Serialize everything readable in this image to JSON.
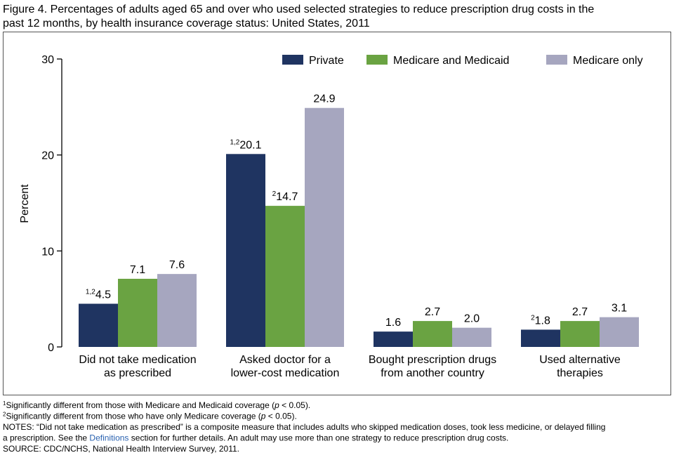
{
  "chart_data": {
    "type": "bar",
    "title": [
      "Figure 4. Percentages of adults aged 65 and over who used selected strategies to reduce prescription drug costs in the",
      "past 12 months, by health insurance coverage status: United States, 2011"
    ],
    "y_label": "Percent",
    "categories": [
      [
        "Did not take medication",
        "as prescribed"
      ],
      [
        "Asked doctor for a",
        "lower-cost medication"
      ],
      [
        "Bought prescription drugs",
        "from another country"
      ],
      [
        "Used alternative",
        "therapies"
      ]
    ],
    "series": [
      {
        "name": "Private",
        "color": "#1f3461",
        "values": [
          4.5,
          20.1,
          1.6,
          1.8
        ],
        "value_labels": [
          "4.5",
          "20.1",
          "1.6",
          "1.8"
        ],
        "label_marks": [
          "1,2",
          "1,2",
          null,
          "2"
        ]
      },
      {
        "name": "Medicare and Medicaid",
        "color": "#6aa342",
        "values": [
          7.1,
          14.7,
          2.7,
          2.7
        ],
        "value_labels": [
          "7.1",
          "14.7",
          "2.7",
          "2.7"
        ],
        "label_marks": [
          null,
          "2",
          null,
          null
        ]
      },
      {
        "name": "Medicare only",
        "color": "#a6a6bf",
        "values": [
          7.6,
          24.9,
          2.0,
          3.1
        ],
        "value_labels": [
          "7.6",
          "24.9",
          "2.0",
          "3.1"
        ],
        "label_marks": [
          null,
          null,
          null,
          null
        ]
      }
    ],
    "ylim": [
      0,
      30
    ],
    "yticks": [
      0,
      10,
      20,
      30
    ],
    "legend": "top-right",
    "footnotes": [
      [
        {
          "text": "1",
          "style": "sup"
        },
        {
          "text": "Significantly different from those with Medicare and Medicaid coverage (",
          "style": "normal"
        },
        {
          "text": "p",
          "style": "italic"
        },
        {
          "text": " < 0.05).",
          "style": "normal"
        }
      ],
      [
        {
          "text": "2",
          "style": "sup"
        },
        {
          "text": "Significantly different from those who have only Medicare coverage (",
          "style": "normal"
        },
        {
          "text": "p",
          "style": "italic"
        },
        {
          "text": " < 0.05).",
          "style": "normal"
        }
      ],
      [
        {
          "text": "NOTES: “Did not take medication as prescribed” is a composite measure that includes adults who skipped medication doses, took less medicine, or delayed filling",
          "style": "normal"
        }
      ],
      [
        {
          "text": "a prescription. See the ",
          "style": "normal"
        },
        {
          "text": "Definitions",
          "style": "link"
        },
        {
          "text": " section for further details. An adult may use more than one strategy to reduce prescription drug costs.",
          "style": "normal"
        }
      ],
      [
        {
          "text": "SOURCE: CDC/NCHS, National Health Interview Survey, 2011.",
          "style": "normal"
        }
      ]
    ]
  }
}
